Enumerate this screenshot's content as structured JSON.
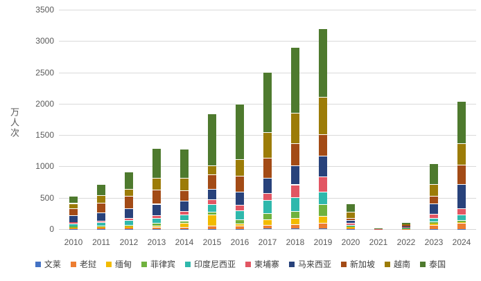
{
  "colors": {
    "background": "#FFFFFF",
    "grid": "#D9D9D9",
    "axis_text": "#595959",
    "legend_text": "#404040"
  },
  "chart_data": {
    "type": "bar",
    "stacked": true,
    "title": "",
    "xlabel": "",
    "ylabel": "万人次",
    "ylim": [
      0,
      3500
    ],
    "yticks": [
      0,
      500,
      1000,
      1500,
      2000,
      2500,
      3000,
      3500
    ],
    "grid": true,
    "legend_position": "bottom",
    "categories": [
      "2010",
      "2011",
      "2012",
      "2013",
      "2014",
      "2015",
      "2016",
      "2017",
      "2018",
      "2019",
      "2020",
      "2021",
      "2022",
      "2023",
      "2024"
    ],
    "series": [
      {
        "name": "文莱",
        "color": "#4472C4",
        "values": [
          2,
          2,
          4,
          4,
          4,
          5,
          5,
          6,
          7,
          10,
          1,
          0,
          0,
          3,
          5
        ]
      },
      {
        "name": "老挝",
        "color": "#ED7D31",
        "values": [
          13,
          15,
          20,
          25,
          30,
          55,
          55,
          58,
          65,
          90,
          10,
          1,
          5,
          68,
          95
        ]
      },
      {
        "name": "缅甸",
        "color": "#F2BB00",
        "values": [
          10,
          12,
          22,
          25,
          65,
          170,
          25,
          90,
          100,
          110,
          20,
          1,
          4,
          20,
          10
        ]
      },
      {
        "name": "菲律宾",
        "color": "#70B23E",
        "values": [
          19,
          24,
          25,
          43,
          39,
          50,
          65,
          98,
          115,
          185,
          12,
          1,
          5,
          25,
          30
        ]
      },
      {
        "name": "印度尼西亚",
        "color": "#2FB8AC",
        "values": [
          47,
          57,
          69,
          81,
          95,
          120,
          145,
          210,
          220,
          200,
          25,
          1,
          12,
          60,
          95
        ]
      },
      {
        "name": "柬埔寨",
        "color": "#E25663",
        "values": [
          18,
          25,
          33,
          46,
          56,
          70,
          95,
          110,
          205,
          240,
          30,
          1,
          9,
          70,
          100
        ]
      },
      {
        "name": "马来西亚",
        "color": "#28427B",
        "values": [
          113,
          125,
          156,
          179,
          161,
          170,
          210,
          240,
          300,
          330,
          44,
          1,
          12,
          160,
          385
        ]
      },
      {
        "name": "新加坡",
        "color": "#A34B16",
        "values": [
          112,
          157,
          203,
          227,
          171,
          230,
          250,
          330,
          355,
          345,
          40,
          1,
          18,
          120,
          310
        ]
      },
      {
        "name": "越南",
        "color": "#9C7C08",
        "values": [
          80,
          125,
          110,
          190,
          196,
          150,
          270,
          400,
          485,
          595,
          92,
          1,
          15,
          195,
          340
        ]
      },
      {
        "name": "泰国",
        "color": "#4E7A2E",
        "values": [
          113,
          176,
          279,
          470,
          462,
          820,
          880,
          965,
          1050,
          1095,
          130,
          1,
          27,
          330,
          675
        ]
      }
    ]
  }
}
